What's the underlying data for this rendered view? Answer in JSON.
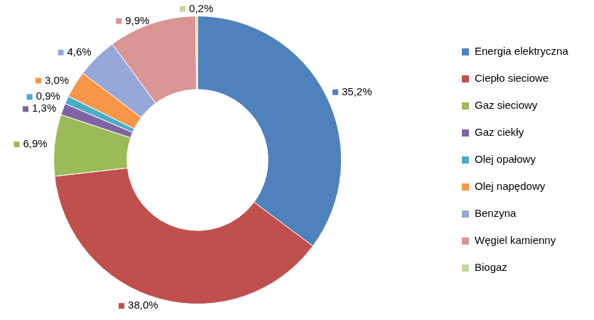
{
  "chart_data": {
    "type": "doughnut",
    "categories": [
      "Energia elektryczna",
      "Ciepło sieciowe",
      "Gaz sieciowy",
      "Gaz ciekły",
      "Olej opałowy",
      "Olej napędowy",
      "Benzyna",
      "Węgiel kamienny",
      "Biogaz"
    ],
    "values": [
      35.2,
      38.0,
      6.9,
      1.3,
      0.9,
      3.0,
      4.6,
      9.9,
      0.2
    ],
    "value_labels": [
      "35,2%",
      "38,0%",
      "6,9%",
      "1,3%",
      "0,9%",
      "3,0%",
      "4,6%",
      "9,9%",
      "0,2%"
    ],
    "colors": [
      "#4F81BD",
      "#C0504D",
      "#9BBB59",
      "#8064A2",
      "#4BACC6",
      "#F79646",
      "#95A8D8",
      "#D99694",
      "#C3D69B"
    ],
    "data_labels": true,
    "legend": "right"
  }
}
